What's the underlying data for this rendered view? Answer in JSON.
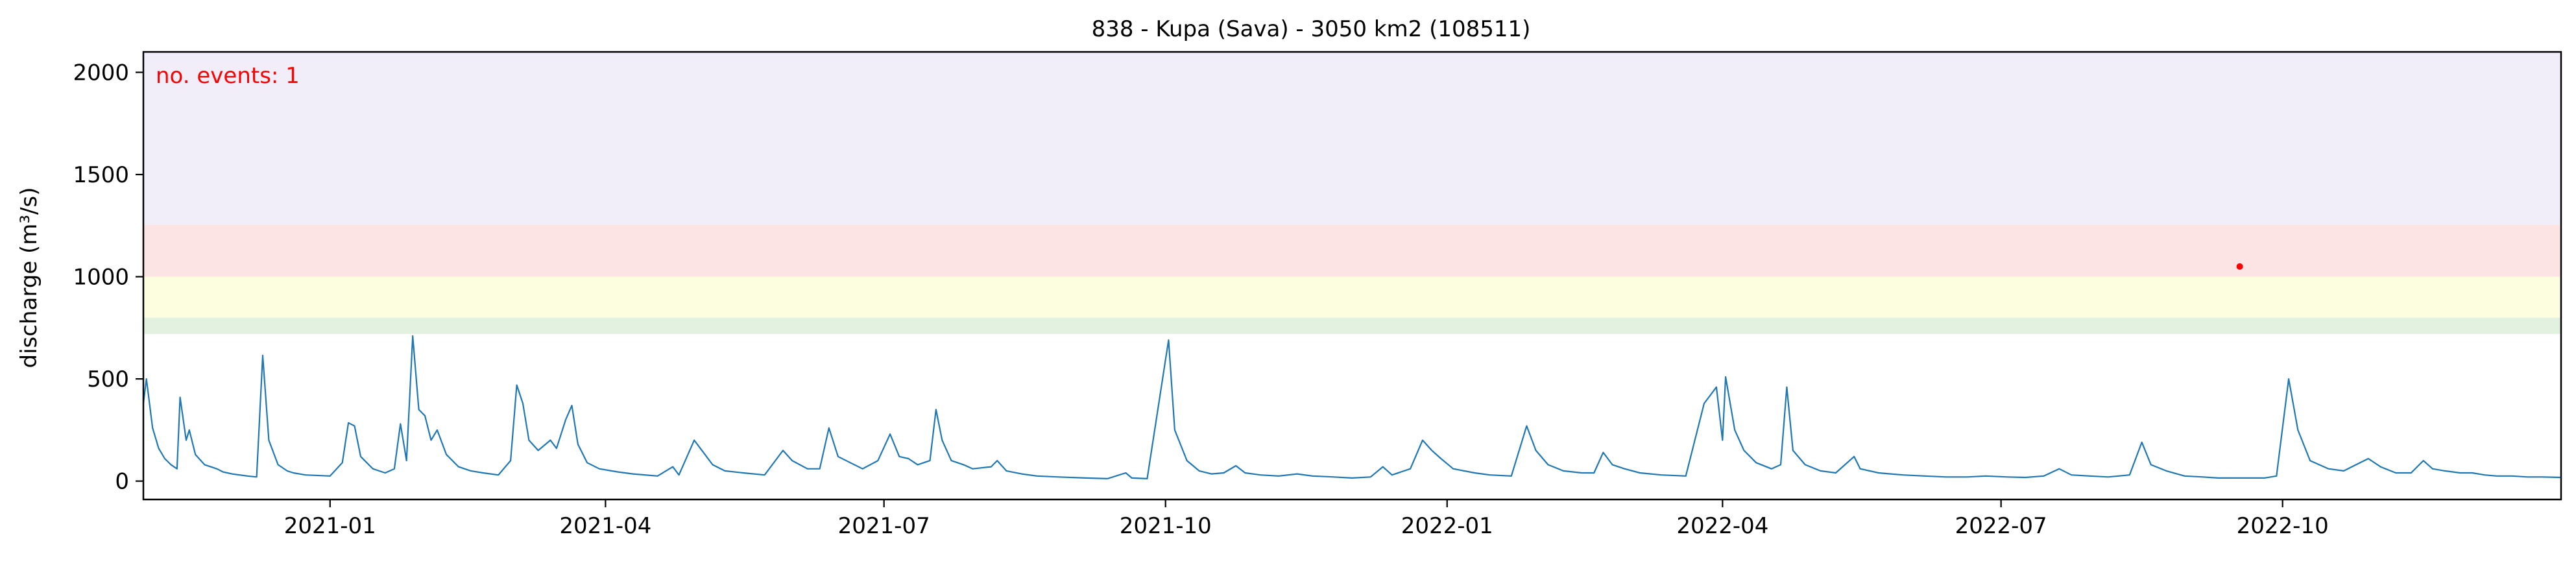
{
  "chart_data": {
    "type": "line",
    "title": "838 - Kupa (Sava) - 3050 km2 (108511)",
    "xlabel": "",
    "ylabel": "discharge (m³/s)",
    "ylim": [
      -90,
      2100
    ],
    "xlim": [
      "2020-11-01",
      "2022-12-31"
    ],
    "y_ticks": [
      0,
      500,
      1000,
      1500,
      2000
    ],
    "x_ticks": [
      {
        "date": "2021-01-01",
        "label": "2021-01"
      },
      {
        "date": "2021-04-01",
        "label": "2021-04"
      },
      {
        "date": "2021-07-01",
        "label": "2021-07"
      },
      {
        "date": "2021-10-01",
        "label": "2021-10"
      },
      {
        "date": "2022-01-01",
        "label": "2022-01"
      },
      {
        "date": "2022-04-01",
        "label": "2022-04"
      },
      {
        "date": "2022-07-01",
        "label": "2022-07"
      },
      {
        "date": "2022-10-01",
        "label": "2022-10"
      }
    ],
    "grid": false,
    "bands": [
      {
        "name": "threshold-band-1",
        "from": 720,
        "to": 800,
        "color": "#e3f1e1"
      },
      {
        "name": "threshold-band-2",
        "from": 800,
        "to": 1000,
        "color": "#fdfde0"
      },
      {
        "name": "threshold-band-3",
        "from": 1000,
        "to": 1255,
        "color": "#fde4e4"
      },
      {
        "name": "threshold-band-4",
        "from": 1255,
        "to": 2100,
        "color": "#f1eef9"
      }
    ],
    "annotation": {
      "text": "no. events: 1",
      "color": "#ff0000",
      "position": "top-left"
    },
    "series": [
      {
        "name": "discharge",
        "color": "#1f77b4",
        "points": [
          [
            "2020-11-01",
            380
          ],
          [
            "2020-11-02",
            500
          ],
          [
            "2020-11-04",
            260
          ],
          [
            "2020-11-06",
            160
          ],
          [
            "2020-11-08",
            110
          ],
          [
            "2020-11-10",
            80
          ],
          [
            "2020-11-12",
            60
          ],
          [
            "2020-11-13",
            410
          ],
          [
            "2020-11-15",
            200
          ],
          [
            "2020-11-16",
            250
          ],
          [
            "2020-11-18",
            130
          ],
          [
            "2020-11-21",
            80
          ],
          [
            "2020-11-25",
            60
          ],
          [
            "2020-11-27",
            45
          ],
          [
            "2020-11-30",
            35
          ],
          [
            "2020-12-05",
            25
          ],
          [
            "2020-12-08",
            20
          ],
          [
            "2020-12-10",
            615
          ],
          [
            "2020-12-12",
            200
          ],
          [
            "2020-12-15",
            80
          ],
          [
            "2020-12-18",
            50
          ],
          [
            "2020-12-20",
            40
          ],
          [
            "2020-12-24",
            30
          ],
          [
            "2021-01-01",
            25
          ],
          [
            "2021-01-05",
            90
          ],
          [
            "2021-01-07",
            285
          ],
          [
            "2021-01-09",
            270
          ],
          [
            "2021-01-11",
            120
          ],
          [
            "2021-01-15",
            60
          ],
          [
            "2021-01-19",
            40
          ],
          [
            "2021-01-22",
            60
          ],
          [
            "2021-01-24",
            280
          ],
          [
            "2021-01-26",
            100
          ],
          [
            "2021-01-28",
            710
          ],
          [
            "2021-01-30",
            350
          ],
          [
            "2021-02-01",
            320
          ],
          [
            "2021-02-03",
            200
          ],
          [
            "2021-02-05",
            250
          ],
          [
            "2021-02-08",
            130
          ],
          [
            "2021-02-12",
            70
          ],
          [
            "2021-02-16",
            50
          ],
          [
            "2021-02-20",
            40
          ],
          [
            "2021-02-25",
            30
          ],
          [
            "2021-03-01",
            100
          ],
          [
            "2021-03-03",
            470
          ],
          [
            "2021-03-05",
            380
          ],
          [
            "2021-03-07",
            200
          ],
          [
            "2021-03-10",
            150
          ],
          [
            "2021-03-14",
            200
          ],
          [
            "2021-03-16",
            160
          ],
          [
            "2021-03-19",
            300
          ],
          [
            "2021-03-21",
            370
          ],
          [
            "2021-03-23",
            180
          ],
          [
            "2021-03-26",
            90
          ],
          [
            "2021-03-30",
            60
          ],
          [
            "2021-04-05",
            45
          ],
          [
            "2021-04-10",
            35
          ],
          [
            "2021-04-18",
            25
          ],
          [
            "2021-04-23",
            70
          ],
          [
            "2021-04-25",
            30
          ],
          [
            "2021-04-30",
            200
          ],
          [
            "2021-05-02",
            160
          ],
          [
            "2021-05-06",
            80
          ],
          [
            "2021-05-10",
            50
          ],
          [
            "2021-05-16",
            40
          ],
          [
            "2021-05-23",
            30
          ],
          [
            "2021-05-29",
            150
          ],
          [
            "2021-06-01",
            100
          ],
          [
            "2021-06-06",
            60
          ],
          [
            "2021-06-10",
            60
          ],
          [
            "2021-06-13",
            260
          ],
          [
            "2021-06-16",
            120
          ],
          [
            "2021-06-20",
            90
          ],
          [
            "2021-06-24",
            60
          ],
          [
            "2021-06-29",
            100
          ],
          [
            "2021-07-03",
            230
          ],
          [
            "2021-07-06",
            120
          ],
          [
            "2021-07-09",
            110
          ],
          [
            "2021-07-12",
            80
          ],
          [
            "2021-07-16",
            100
          ],
          [
            "2021-07-18",
            350
          ],
          [
            "2021-07-20",
            200
          ],
          [
            "2021-07-23",
            100
          ],
          [
            "2021-07-27",
            80
          ],
          [
            "2021-07-30",
            60
          ],
          [
            "2021-08-05",
            70
          ],
          [
            "2021-08-07",
            100
          ],
          [
            "2021-08-10",
            50
          ],
          [
            "2021-08-15",
            35
          ],
          [
            "2021-08-20",
            25
          ],
          [
            "2021-08-27",
            20
          ],
          [
            "2021-09-05",
            15
          ],
          [
            "2021-09-12",
            12
          ],
          [
            "2021-09-18",
            40
          ],
          [
            "2021-09-20",
            15
          ],
          [
            "2021-09-25",
            12
          ],
          [
            "2021-10-02",
            690
          ],
          [
            "2021-10-04",
            250
          ],
          [
            "2021-10-08",
            100
          ],
          [
            "2021-10-12",
            50
          ],
          [
            "2021-10-16",
            35
          ],
          [
            "2021-10-20",
            40
          ],
          [
            "2021-10-24",
            75
          ],
          [
            "2021-10-27",
            40
          ],
          [
            "2021-11-01",
            30
          ],
          [
            "2021-11-07",
            25
          ],
          [
            "2021-11-13",
            35
          ],
          [
            "2021-11-18",
            25
          ],
          [
            "2021-11-25",
            20
          ],
          [
            "2021-12-01",
            15
          ],
          [
            "2021-12-07",
            20
          ],
          [
            "2021-12-11",
            70
          ],
          [
            "2021-12-14",
            30
          ],
          [
            "2021-12-20",
            60
          ],
          [
            "2021-12-24",
            200
          ],
          [
            "2021-12-27",
            150
          ],
          [
            "2021-12-30",
            110
          ],
          [
            "2022-01-03",
            60
          ],
          [
            "2022-01-10",
            40
          ],
          [
            "2022-01-15",
            30
          ],
          [
            "2022-01-22",
            25
          ],
          [
            "2022-01-27",
            270
          ],
          [
            "2022-01-30",
            150
          ],
          [
            "2022-02-03",
            80
          ],
          [
            "2022-02-08",
            50
          ],
          [
            "2022-02-14",
            40
          ],
          [
            "2022-02-18",
            40
          ],
          [
            "2022-02-21",
            140
          ],
          [
            "2022-02-24",
            80
          ],
          [
            "2022-02-28",
            60
          ],
          [
            "2022-03-05",
            40
          ],
          [
            "2022-03-12",
            30
          ],
          [
            "2022-03-20",
            25
          ],
          [
            "2022-03-26",
            380
          ],
          [
            "2022-03-28",
            420
          ],
          [
            "2022-03-30",
            460
          ],
          [
            "2022-04-01",
            200
          ],
          [
            "2022-04-02",
            510
          ],
          [
            "2022-04-05",
            250
          ],
          [
            "2022-04-08",
            150
          ],
          [
            "2022-04-12",
            90
          ],
          [
            "2022-04-17",
            60
          ],
          [
            "2022-04-20",
            80
          ],
          [
            "2022-04-22",
            460
          ],
          [
            "2022-04-24",
            150
          ],
          [
            "2022-04-28",
            80
          ],
          [
            "2022-05-03",
            50
          ],
          [
            "2022-05-08",
            40
          ],
          [
            "2022-05-14",
            120
          ],
          [
            "2022-05-16",
            60
          ],
          [
            "2022-05-22",
            40
          ],
          [
            "2022-05-30",
            30
          ],
          [
            "2022-06-06",
            25
          ],
          [
            "2022-06-13",
            20
          ],
          [
            "2022-06-20",
            20
          ],
          [
            "2022-06-26",
            25
          ],
          [
            "2022-07-03",
            20
          ],
          [
            "2022-07-09",
            18
          ],
          [
            "2022-07-15",
            25
          ],
          [
            "2022-07-20",
            60
          ],
          [
            "2022-07-24",
            30
          ],
          [
            "2022-07-30",
            25
          ],
          [
            "2022-08-05",
            20
          ],
          [
            "2022-08-12",
            30
          ],
          [
            "2022-08-16",
            190
          ],
          [
            "2022-08-19",
            80
          ],
          [
            "2022-08-24",
            50
          ],
          [
            "2022-08-30",
            25
          ],
          [
            "2022-09-05",
            20
          ],
          [
            "2022-09-10",
            15
          ],
          [
            "2022-09-18",
            15
          ],
          [
            "2022-09-25",
            15
          ],
          [
            "2022-09-29",
            25
          ],
          [
            "2022-10-03",
            500
          ],
          [
            "2022-10-06",
            250
          ],
          [
            "2022-10-10",
            100
          ],
          [
            "2022-10-16",
            60
          ],
          [
            "2022-10-21",
            50
          ],
          [
            "2022-10-25",
            80
          ],
          [
            "2022-10-29",
            110
          ],
          [
            "2022-11-02",
            70
          ],
          [
            "2022-11-07",
            40
          ],
          [
            "2022-11-12",
            40
          ],
          [
            "2022-11-16",
            100
          ],
          [
            "2022-11-19",
            60
          ],
          [
            "2022-11-23",
            50
          ],
          [
            "2022-11-28",
            40
          ],
          [
            "2022-12-02",
            40
          ],
          [
            "2022-12-06",
            30
          ],
          [
            "2022-12-10",
            25
          ],
          [
            "2022-12-15",
            25
          ],
          [
            "2022-12-20",
            20
          ],
          [
            "2022-12-25",
            20
          ],
          [
            "2022-12-31",
            18
          ]
        ]
      }
    ],
    "event_markers": [
      {
        "date": "2022-09-17",
        "value": 1050,
        "color": "#ff0000"
      }
    ]
  }
}
